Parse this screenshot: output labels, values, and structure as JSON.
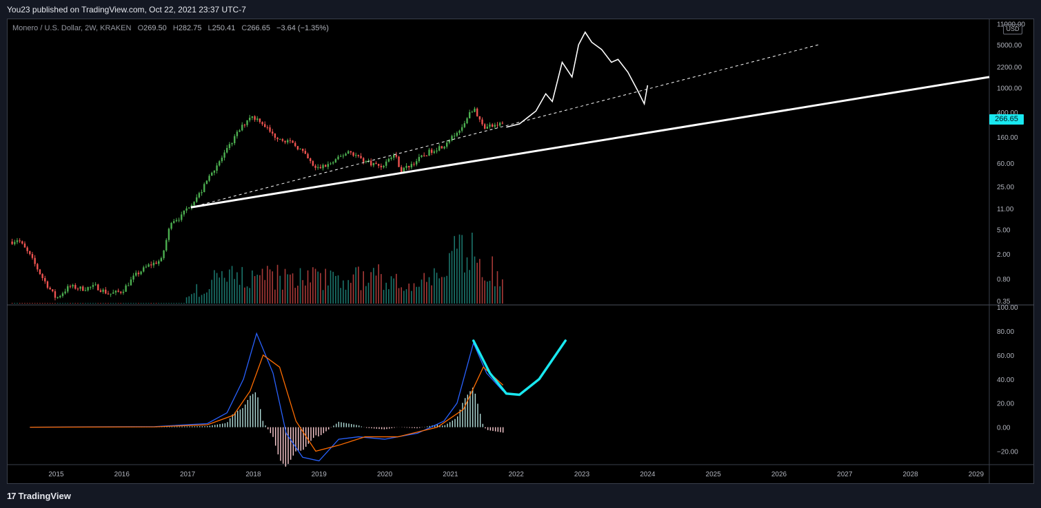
{
  "header": {
    "published": "You23 published on TradingView.com, Oct 22, 2021 23:37 UTC-7"
  },
  "legend": {
    "symbol": "Monero / U.S. Dollar, 2W, KRAKEN",
    "o_label": "O",
    "o": "269.50",
    "h_label": "H",
    "h": "282.75",
    "l_label": "L",
    "l": "250.41",
    "c_label": "C",
    "c": "266.65",
    "change": "−3.64 (−1.35%)"
  },
  "axis": {
    "currency": "USD",
    "last_price": "266.65"
  },
  "footer": {
    "brand": "TradingView",
    "logo_glyph": "17"
  },
  "colors": {
    "up": "#4caf50",
    "down": "#ef5350",
    "vol_up": "#26a69a",
    "vol_down": "#ef5350",
    "macd": "#2962ff",
    "signal": "#ff6d00",
    "projection": "#19e8f0"
  },
  "chart_data": [
    {
      "type": "candlestick",
      "title": "Monero / U.S. Dollar, 2W, KRAKEN",
      "yscale": "log",
      "ylim": [
        0.3,
        12000
      ],
      "y_ticks": [
        "11000.00",
        "5000.00",
        "2200.00",
        "1000.00",
        "400.00",
        "160.00",
        "60.00",
        "25.00",
        "11.00",
        "5.00",
        "2.00",
        "0.80",
        "0.35"
      ],
      "x_ticks": [
        "2015",
        "2016",
        "2017",
        "2018",
        "2019",
        "2020",
        "2021",
        "2022",
        "2023",
        "2024",
        "2025",
        "2026",
        "2027",
        "2028",
        "2029"
      ],
      "x_range": [
        2014.25,
        2029.2
      ],
      "anchors": [
        [
          2014.33,
          3.2
        ],
        [
          2014.42,
          3.5
        ],
        [
          2014.6,
          1.9
        ],
        [
          2014.8,
          0.8
        ],
        [
          2015.0,
          0.38
        ],
        [
          2015.2,
          0.6
        ],
        [
          2015.4,
          0.55
        ],
        [
          2015.6,
          0.6
        ],
        [
          2015.8,
          0.45
        ],
        [
          2016.0,
          0.5
        ],
        [
          2016.2,
          0.9
        ],
        [
          2016.4,
          1.3
        ],
        [
          2016.6,
          1.6
        ],
        [
          2016.75,
          7.0
        ],
        [
          2016.9,
          8.0
        ],
        [
          2017.0,
          11.5
        ],
        [
          2017.2,
          20
        ],
        [
          2017.35,
          40
        ],
        [
          2017.55,
          80
        ],
        [
          2017.75,
          180
        ],
        [
          2017.95,
          350
        ],
        [
          2018.1,
          300
        ],
        [
          2018.3,
          170
        ],
        [
          2018.5,
          140
        ],
        [
          2018.7,
          105
        ],
        [
          2018.95,
          48
        ],
        [
          2019.2,
          60
        ],
        [
          2019.45,
          95
        ],
        [
          2019.7,
          65
        ],
        [
          2019.95,
          53
        ],
        [
          2020.15,
          85
        ],
        [
          2020.25,
          45
        ],
        [
          2020.45,
          62
        ],
        [
          2020.7,
          95
        ],
        [
          2020.95,
          125
        ],
        [
          2021.15,
          230
        ],
        [
          2021.35,
          470
        ],
        [
          2021.5,
          230
        ],
        [
          2021.65,
          240
        ],
        [
          2021.8,
          266.65
        ]
      ]
    },
    {
      "type": "bar",
      "title": "Volume",
      "note": "relative volume bars under price pane"
    },
    {
      "type": "line",
      "title": "MACD",
      "ylim": [
        -30,
        100
      ],
      "y_ticks": [
        "100.00",
        "80.00",
        "60.00",
        "40.00",
        "20.00",
        "0.00",
        "−20.00"
      ],
      "macd": [
        [
          2014.6,
          0
        ],
        [
          2016.5,
          0.5
        ],
        [
          2017.3,
          3
        ],
        [
          2017.6,
          12
        ],
        [
          2017.85,
          40
        ],
        [
          2018.05,
          78
        ],
        [
          2018.3,
          45
        ],
        [
          2018.5,
          -5
        ],
        [
          2018.75,
          -25
        ],
        [
          2019.0,
          -28
        ],
        [
          2019.3,
          -10
        ],
        [
          2019.6,
          -8
        ],
        [
          2020.0,
          -10
        ],
        [
          2020.5,
          -5
        ],
        [
          2020.9,
          5
        ],
        [
          2021.1,
          20
        ],
        [
          2021.35,
          70
        ],
        [
          2021.55,
          45
        ],
        [
          2021.8,
          30
        ]
      ],
      "signal": [
        [
          2014.6,
          0
        ],
        [
          2016.5,
          0.3
        ],
        [
          2017.3,
          2
        ],
        [
          2017.7,
          10
        ],
        [
          2017.95,
          30
        ],
        [
          2018.15,
          60
        ],
        [
          2018.4,
          50
        ],
        [
          2018.65,
          5
        ],
        [
          2018.95,
          -20
        ],
        [
          2019.3,
          -15
        ],
        [
          2019.7,
          -8
        ],
        [
          2020.2,
          -8
        ],
        [
          2020.8,
          0
        ],
        [
          2021.2,
          15
        ],
        [
          2021.5,
          50
        ],
        [
          2021.8,
          35
        ]
      ],
      "projection": [
        [
          2021.35,
          72
        ],
        [
          2021.6,
          45
        ],
        [
          2021.85,
          28
        ],
        [
          2022.05,
          27
        ],
        [
          2022.35,
          40
        ],
        [
          2022.75,
          72
        ]
      ]
    }
  ]
}
